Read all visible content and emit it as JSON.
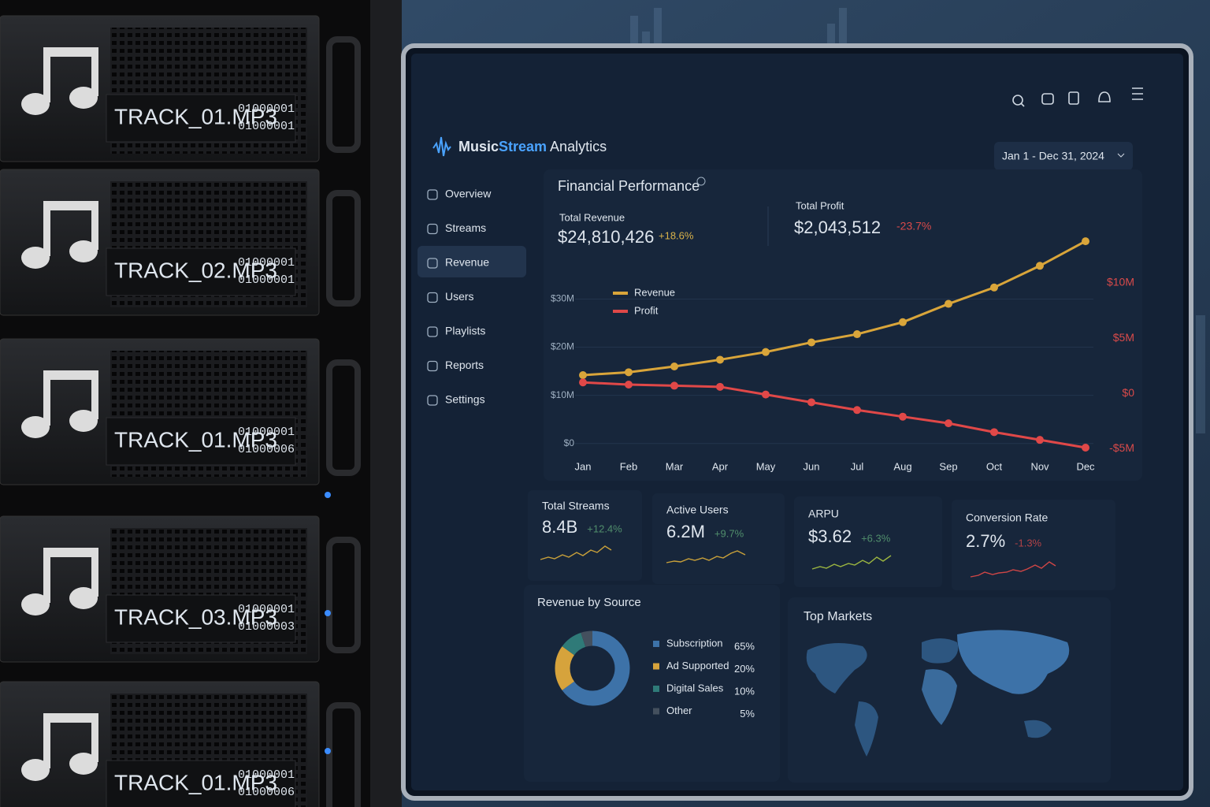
{
  "rack": {
    "units": [
      {
        "label": "TRACK_01.MP3",
        "codes": [
          "01000001",
          "01000001"
        ]
      },
      {
        "label": "TRACK_02.MP3",
        "codes": [
          "01000001",
          "01000001"
        ]
      },
      {
        "label": "TRACK_01.MP3",
        "codes": [
          "01000001",
          "01000006"
        ]
      },
      {
        "label": "TRACK_03.MP3",
        "codes": [
          "01000001",
          "01000003"
        ]
      },
      {
        "label": "TRACK_01.MP3",
        "codes": [
          "01000001",
          "01000006"
        ]
      }
    ]
  },
  "dashboard": {
    "brand": {
      "music": "Music",
      "stream": "Stream",
      "analytics": "Analytics"
    },
    "nav": [
      "Overview",
      "Streams",
      "Revenue",
      "Users",
      "Playlists",
      "Reports",
      "Settings"
    ],
    "date_range": "Jan 1 - Dec 31, 2024",
    "panel_title": "Financial Performance",
    "kpis": [
      {
        "label": "Total Revenue",
        "value": "$24,810,426",
        "change": "+18.6%"
      },
      {
        "label": "Total Profit",
        "value": "$2,043,512",
        "change": "-23.7%"
      }
    ],
    "cards": [
      {
        "title": "Total Streams",
        "value": "8.4B",
        "change": "+12.4%"
      },
      {
        "title": "Active Users",
        "value": "6.2M",
        "change": "+9.7%"
      },
      {
        "title": "ARPU",
        "value": "$3.62",
        "change": "+6.3%"
      },
      {
        "title": "Conversion Rate",
        "value": "2.7%",
        "change": "-1.3%"
      }
    ],
    "map_title": "Top Markets"
  },
  "chart_data": [
    {
      "type": "line",
      "categories": [
        "Jan",
        "Feb",
        "Mar",
        "Apr",
        "May",
        "Jun",
        "Jul",
        "Aug",
        "Sep",
        "Oct",
        "Nov",
        "Dec"
      ],
      "series": [
        {
          "name": "Revenue",
          "color": "#d9a53a",
          "values": [
            14.2,
            14.8,
            16,
            17.4,
            19,
            21,
            22.7,
            25.2,
            29,
            32.4,
            36.9,
            42
          ]
        },
        {
          "name": "Profit",
          "color": "#e04848",
          "axis": "y2",
          "values": [
            1.0,
            0.8,
            0.7,
            0.6,
            -0.1,
            -0.8,
            -1.5,
            -2.1,
            -2.7,
            -3.5,
            -4.2,
            -4.9
          ]
        }
      ],
      "ylim": [
        -2,
        43
      ],
      "yticks": [
        {
          "value": 0,
          "label": "$0"
        },
        {
          "value": 10,
          "label": "$10M"
        },
        {
          "value": 20,
          "label": "$20M"
        },
        {
          "value": 30,
          "label": "$30M"
        }
      ],
      "y2lim": [
        -5.4,
        14.2
      ],
      "y2ticks": [
        {
          "value": -5,
          "label": "-$5M"
        },
        {
          "value": 0,
          "label": "$0"
        },
        {
          "value": 5,
          "label": "$5M"
        },
        {
          "value": 10,
          "label": "$10M"
        }
      ],
      "grid": true,
      "legend": "upper left"
    },
    {
      "type": "donut",
      "title": "Revenue by Source",
      "categories": [
        "Subscription",
        "Ad Supported",
        "Digital Sales",
        "Other"
      ],
      "values": [
        65,
        20,
        10,
        5
      ],
      "value_labels": [
        "65%",
        "20%",
        "10%",
        "5%"
      ],
      "colors": [
        "#3d72a8",
        "#d6a33c",
        "#2f7a78",
        "#44505e"
      ]
    }
  ]
}
